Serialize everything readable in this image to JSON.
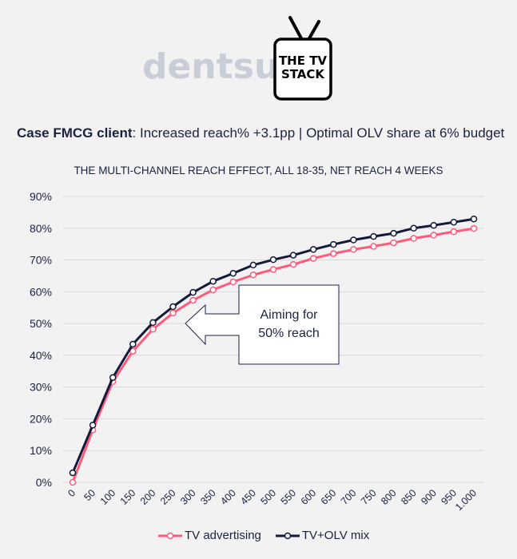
{
  "logos": {
    "brand": "dentsu",
    "product_line1": "THE TV",
    "product_line2": "STACK"
  },
  "headline": {
    "bold": "Case FMCG client",
    "rest": ": Increased reach% +3.1pp | Optimal OLV share at 6% budget"
  },
  "colors": {
    "tv": "#ff5a7a",
    "tv_olv": "#12193a",
    "grid": "#d9d9d9",
    "text": "#1b2240"
  },
  "callout": {
    "line1": "Aiming for",
    "line2": "50% reach"
  },
  "chart_data": {
    "type": "line",
    "title": "THE MULTI-CHANNEL REACH EFFECT, ALL 18-35, NET REACH 4 WEEKS",
    "xlabel": "",
    "ylabel": "",
    "ylim": [
      0,
      90
    ],
    "y_ticks": [
      "0%",
      "10%",
      "20%",
      "30%",
      "40%",
      "50%",
      "60%",
      "70%",
      "80%",
      "90%"
    ],
    "y_tick_values": [
      0,
      10,
      20,
      30,
      40,
      50,
      60,
      70,
      80,
      90
    ],
    "grid": true,
    "legend_position": "bottom",
    "categories": [
      "0",
      "50",
      "100",
      "150",
      "200",
      "250",
      "300",
      "350",
      "400",
      "450",
      "500",
      "550",
      "600",
      "650",
      "700",
      "750",
      "800",
      "850",
      "900",
      "950",
      "1.000"
    ],
    "series": [
      {
        "name": "TV advertising",
        "values": [
          0,
          16.5,
          31.7,
          41.3,
          48.2,
          53.3,
          57.3,
          60.6,
          63.1,
          65.3,
          67.0,
          68.6,
          70.5,
          72.0,
          73.3,
          74.3,
          75.4,
          76.8,
          77.8,
          78.9,
          79.9
        ]
      },
      {
        "name": "TV+OLV mix",
        "values": [
          3.0,
          18.0,
          33.0,
          43.5,
          50.3,
          55.3,
          59.8,
          63.3,
          65.8,
          68.4,
          70.1,
          71.5,
          73.3,
          74.9,
          76.3,
          77.4,
          78.4,
          80.0,
          80.9,
          81.9,
          82.9
        ]
      }
    ]
  }
}
